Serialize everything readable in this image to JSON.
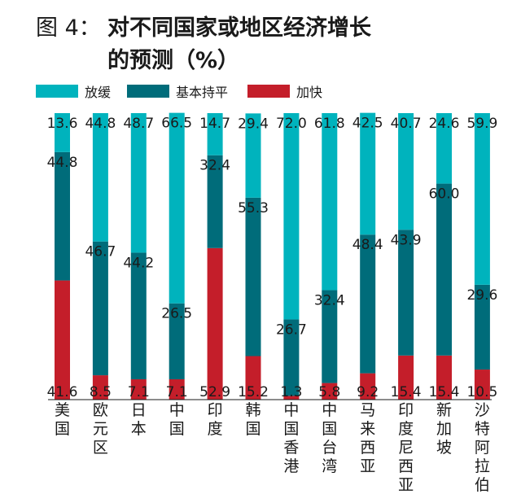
{
  "title": {
    "prefix": "图 4：",
    "line1": "对不同国家或地区经济增长",
    "line2": "的预测（%）"
  },
  "colors": {
    "slow": "#00b3bd",
    "flat": "#006c7a",
    "fast": "#c41e2a"
  },
  "chart_data": {
    "type": "bar",
    "stacked": true,
    "orientation": "vertical",
    "categories": [
      "美国",
      "欧元区",
      "日本",
      "中国",
      "印度",
      "韩国",
      "中国香港",
      "中国台湾",
      "马来西亚",
      "印度尼西亚",
      "新加坡",
      "沙特阿拉伯"
    ],
    "series": [
      {
        "name": "加快",
        "key": "fast",
        "values": [
          41.6,
          8.5,
          7.1,
          7.1,
          52.9,
          15.2,
          1.3,
          5.8,
          9.2,
          15.4,
          15.4,
          10.5
        ]
      },
      {
        "name": "基本持平",
        "key": "flat",
        "values": [
          44.8,
          46.7,
          44.2,
          26.5,
          32.4,
          55.3,
          26.7,
          32.4,
          48.4,
          43.9,
          60.0,
          29.6
        ]
      },
      {
        "name": "放缓",
        "key": "slow",
        "values": [
          13.6,
          44.8,
          48.7,
          66.5,
          14.7,
          29.4,
          72.0,
          61.8,
          42.5,
          40.7,
          24.6,
          59.9
        ]
      }
    ],
    "labels": [
      {
        "fast": "41.6",
        "flat": "44.8",
        "slow": "13.6"
      },
      {
        "fast": "8.5",
        "flat": "46.7",
        "slow": "44.8"
      },
      {
        "fast": "7.1",
        "flat": "44.2",
        "slow": "48.7"
      },
      {
        "fast": "7.1",
        "flat": "26.5",
        "slow": "66.5"
      },
      {
        "fast": "52.9",
        "flat": "32.4",
        "slow": "14.7"
      },
      {
        "fast": "15.2",
        "flat": "55.3",
        "slow": "29.4"
      },
      {
        "fast": "1.3",
        "flat": "26.7",
        "slow": "72.0"
      },
      {
        "fast": "5.8",
        "flat": "32.4",
        "slow": "61.8"
      },
      {
        "fast": "9.2",
        "flat": "48.4",
        "slow": "42.5"
      },
      {
        "fast": "15.4",
        "flat": "43.9",
        "slow": "40.7"
      },
      {
        "fast": "15.4",
        "flat": "60.0",
        "slow": "24.6"
      },
      {
        "fast": "10.5",
        "flat": "29.6",
        "slow": "59.9"
      }
    ],
    "ylim": [
      0,
      100
    ],
    "grid": false,
    "legend_position": "top-left",
    "legend": [
      {
        "label": "放缓",
        "key": "slow"
      },
      {
        "label": "基本持平",
        "key": "flat"
      },
      {
        "label": "加快",
        "key": "fast"
      }
    ]
  }
}
